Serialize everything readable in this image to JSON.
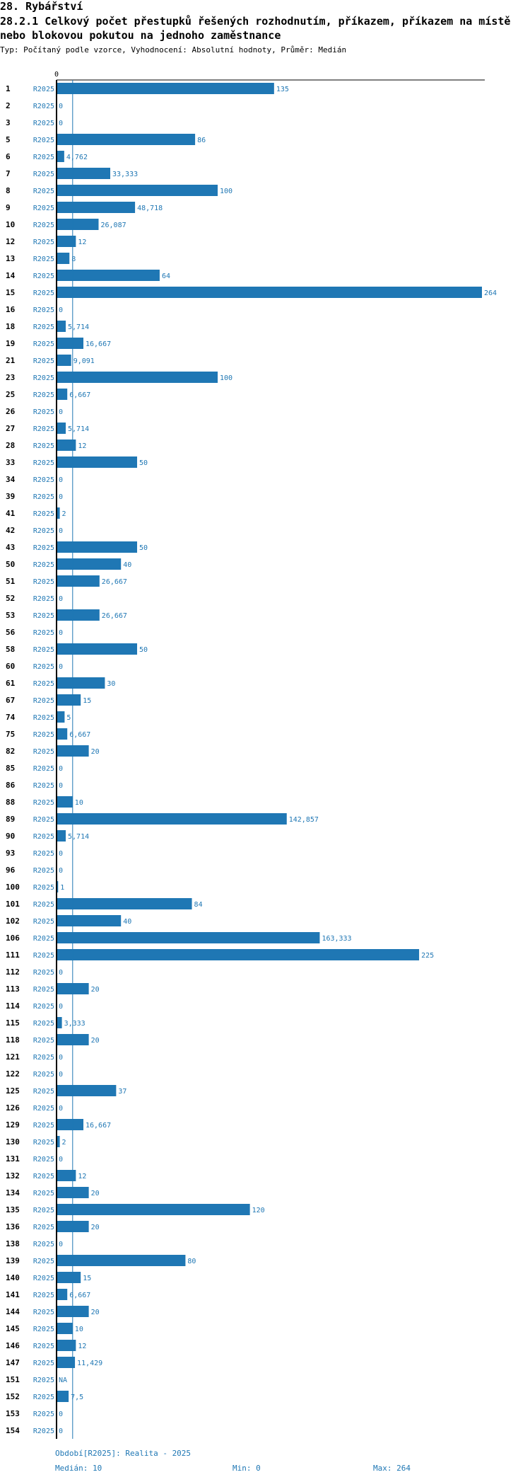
{
  "header": {
    "section_title": "28. Rybářství",
    "chart_title": "28.2.1 Celkový počet přestupků řešených rozhodnutím, příkazem, příkazem na místě nebo blokovou pokutou na jednoho zaměstnance",
    "subtitle": "Typ: Počítaný podle vzorce, Vyhodnocení: Absolutní hodnoty, Průměr: Medián"
  },
  "footer": {
    "period": "Období[R2025]: Realita - 2025",
    "median": "Medián: 10",
    "min": "Min: 0",
    "max": "Max: 264"
  },
  "colors": {
    "bar": "#1f77b4",
    "label": "#1f77b4",
    "axis": "#000000"
  },
  "chart_data": {
    "type": "bar",
    "orientation": "horizontal",
    "title": "28.2.1 Celkový počet přestupků řešených rozhodnutím, příkazem, příkazem na místě nebo blokovou pokutou na jednoho zaměstnance",
    "series_label": "R2025",
    "xlim": [
      0,
      264
    ],
    "x_tick_labels": [
      "0"
    ],
    "median": 10,
    "min": 0,
    "max": 264,
    "rows": [
      {
        "id": "1",
        "value": 135,
        "label": "135"
      },
      {
        "id": "2",
        "value": 0,
        "label": "0"
      },
      {
        "id": "3",
        "value": 0,
        "label": "0"
      },
      {
        "id": "5",
        "value": 86,
        "label": "86"
      },
      {
        "id": "6",
        "value": 4.762,
        "label": "4,762"
      },
      {
        "id": "7",
        "value": 33.333,
        "label": "33,333"
      },
      {
        "id": "8",
        "value": 100,
        "label": "100"
      },
      {
        "id": "9",
        "value": 48.718,
        "label": "48,718"
      },
      {
        "id": "10",
        "value": 26.087,
        "label": "26,087"
      },
      {
        "id": "12",
        "value": 12,
        "label": "12"
      },
      {
        "id": "13",
        "value": 8,
        "label": "8"
      },
      {
        "id": "14",
        "value": 64,
        "label": "64"
      },
      {
        "id": "15",
        "value": 264,
        "label": "264"
      },
      {
        "id": "16",
        "value": 0,
        "label": "0"
      },
      {
        "id": "18",
        "value": 5.714,
        "label": "5,714"
      },
      {
        "id": "19",
        "value": 16.667,
        "label": "16,667"
      },
      {
        "id": "21",
        "value": 9.091,
        "label": "9,091"
      },
      {
        "id": "23",
        "value": 100,
        "label": "100"
      },
      {
        "id": "25",
        "value": 6.667,
        "label": "6,667"
      },
      {
        "id": "26",
        "value": 0,
        "label": "0"
      },
      {
        "id": "27",
        "value": 5.714,
        "label": "5,714"
      },
      {
        "id": "28",
        "value": 12,
        "label": "12"
      },
      {
        "id": "33",
        "value": 50,
        "label": "50"
      },
      {
        "id": "34",
        "value": 0,
        "label": "0"
      },
      {
        "id": "39",
        "value": 0,
        "label": "0"
      },
      {
        "id": "41",
        "value": 2,
        "label": "2"
      },
      {
        "id": "42",
        "value": 0,
        "label": "0"
      },
      {
        "id": "43",
        "value": 50,
        "label": "50"
      },
      {
        "id": "50",
        "value": 40,
        "label": "40"
      },
      {
        "id": "51",
        "value": 26.667,
        "label": "26,667"
      },
      {
        "id": "52",
        "value": 0,
        "label": "0"
      },
      {
        "id": "53",
        "value": 26.667,
        "label": "26,667"
      },
      {
        "id": "56",
        "value": 0,
        "label": "0"
      },
      {
        "id": "58",
        "value": 50,
        "label": "50"
      },
      {
        "id": "60",
        "value": 0,
        "label": "0"
      },
      {
        "id": "61",
        "value": 30,
        "label": "30"
      },
      {
        "id": "67",
        "value": 15,
        "label": "15"
      },
      {
        "id": "74",
        "value": 5,
        "label": "5"
      },
      {
        "id": "75",
        "value": 6.667,
        "label": "6,667"
      },
      {
        "id": "82",
        "value": 20,
        "label": "20"
      },
      {
        "id": "85",
        "value": 0,
        "label": "0"
      },
      {
        "id": "86",
        "value": 0,
        "label": "0"
      },
      {
        "id": "88",
        "value": 10,
        "label": "10"
      },
      {
        "id": "89",
        "value": 142.857,
        "label": "142,857"
      },
      {
        "id": "90",
        "value": 5.714,
        "label": "5,714"
      },
      {
        "id": "93",
        "value": 0,
        "label": "0"
      },
      {
        "id": "96",
        "value": 0,
        "label": "0"
      },
      {
        "id": "100",
        "value": 1,
        "label": "1"
      },
      {
        "id": "101",
        "value": 84,
        "label": "84"
      },
      {
        "id": "102",
        "value": 40,
        "label": "40"
      },
      {
        "id": "106",
        "value": 163.333,
        "label": "163,333"
      },
      {
        "id": "111",
        "value": 225,
        "label": "225"
      },
      {
        "id": "112",
        "value": 0,
        "label": "0"
      },
      {
        "id": "113",
        "value": 20,
        "label": "20"
      },
      {
        "id": "114",
        "value": 0,
        "label": "0"
      },
      {
        "id": "115",
        "value": 3.333,
        "label": "3,333"
      },
      {
        "id": "118",
        "value": 20,
        "label": "20"
      },
      {
        "id": "121",
        "value": 0,
        "label": "0"
      },
      {
        "id": "122",
        "value": 0,
        "label": "0"
      },
      {
        "id": "125",
        "value": 37,
        "label": "37"
      },
      {
        "id": "126",
        "value": 0,
        "label": "0"
      },
      {
        "id": "129",
        "value": 16.667,
        "label": "16,667"
      },
      {
        "id": "130",
        "value": 2,
        "label": "2"
      },
      {
        "id": "131",
        "value": 0,
        "label": "0"
      },
      {
        "id": "132",
        "value": 12,
        "label": "12"
      },
      {
        "id": "134",
        "value": 20,
        "label": "20"
      },
      {
        "id": "135",
        "value": 120,
        "label": "120"
      },
      {
        "id": "136",
        "value": 20,
        "label": "20"
      },
      {
        "id": "138",
        "value": 0,
        "label": "0"
      },
      {
        "id": "139",
        "value": 80,
        "label": "80"
      },
      {
        "id": "140",
        "value": 15,
        "label": "15"
      },
      {
        "id": "141",
        "value": 6.667,
        "label": "6,667"
      },
      {
        "id": "144",
        "value": 20,
        "label": "20"
      },
      {
        "id": "145",
        "value": 10,
        "label": "10"
      },
      {
        "id": "146",
        "value": 12,
        "label": "12"
      },
      {
        "id": "147",
        "value": 11.429,
        "label": "11,429"
      },
      {
        "id": "151",
        "value": null,
        "label": "NA"
      },
      {
        "id": "152",
        "value": 7.5,
        "label": "7,5"
      },
      {
        "id": "153",
        "value": 0,
        "label": "0"
      },
      {
        "id": "154",
        "value": 0,
        "label": "0"
      }
    ]
  }
}
